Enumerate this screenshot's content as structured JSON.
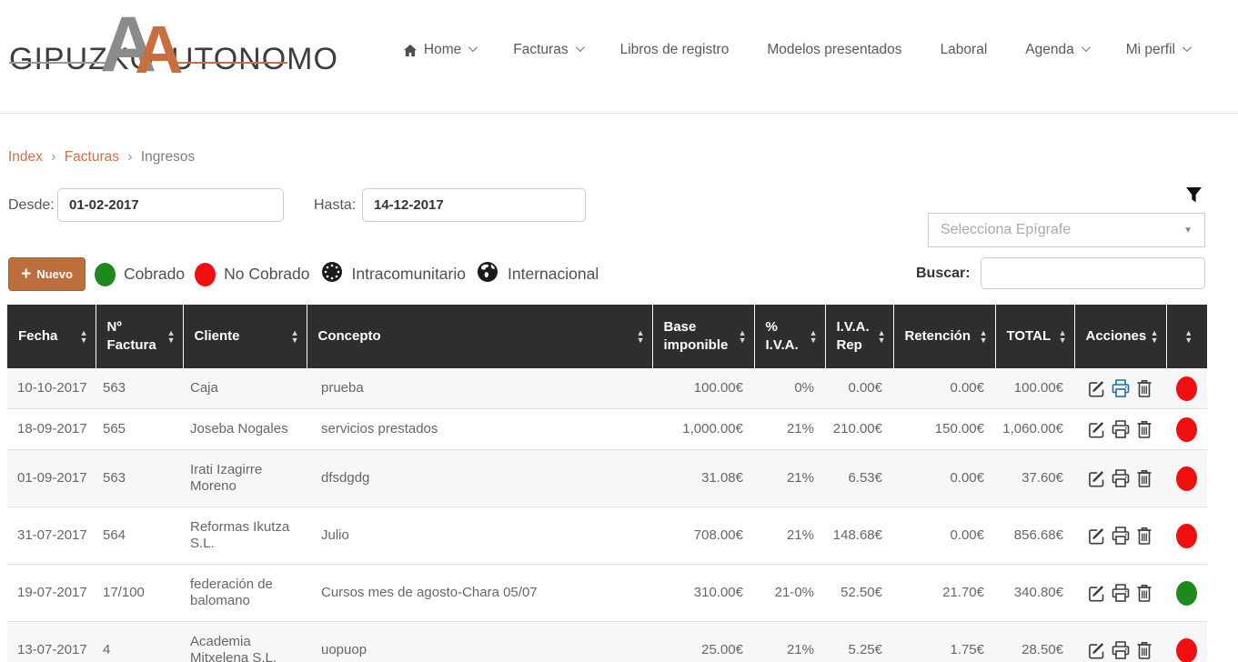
{
  "logo": {
    "text_left": "GIPUZKO",
    "a_gray": "A",
    "a_orange": "A",
    "text_right": "UTONOMO"
  },
  "nav": {
    "items": [
      {
        "label": "Home",
        "icon": "home-icon",
        "caret": true
      },
      {
        "label": "Facturas",
        "caret": true
      },
      {
        "label": "Libros de registro",
        "caret": false
      },
      {
        "label": "Modelos presentados",
        "caret": false
      },
      {
        "label": "Laboral",
        "caret": false
      },
      {
        "label": "Agenda",
        "caret": true
      },
      {
        "label": "Mi perfil",
        "caret": true
      }
    ]
  },
  "breadcrumb": {
    "items": [
      "Index",
      "Facturas",
      "Ingresos"
    ],
    "separator": "›"
  },
  "filters": {
    "from_label": "Desde:",
    "from_value": "01-02-2017",
    "to_label": "Hasta:",
    "to_value": "14-12-2017",
    "epigrafe_placeholder": "Selecciona Epígrafe",
    "search_label": "Buscar:",
    "search_value": ""
  },
  "toolbar": {
    "new_plus": "+",
    "new_label": "Nuevo"
  },
  "legend": {
    "items": [
      {
        "label": "Cobrado",
        "color": "#1e8a1e",
        "icon": "green-dot-icon"
      },
      {
        "label": "No Cobrado",
        "color": "#f10e0e",
        "icon": "red-dot-icon"
      },
      {
        "label": "Intracomunitario",
        "icon": "eu-circle-icon"
      },
      {
        "label": "Internacional",
        "icon": "globe-icon"
      }
    ]
  },
  "table": {
    "headers": [
      "Fecha",
      "Nº Factura",
      "Cliente",
      "Concepto",
      "Base imponible",
      "% I.V.A.",
      "I.V.A. Rep",
      "Retención",
      "TOTAL",
      "Acciones",
      ""
    ],
    "rows": [
      {
        "fecha": "10-10-2017",
        "factura": "563",
        "cliente": "Caja",
        "concepto": "prueba",
        "base": "100.00€",
        "iva_pct": "0%",
        "iva_rep": "0.00€",
        "retencion": "0.00€",
        "total": "100.00€",
        "status": "red",
        "print_active": true
      },
      {
        "fecha": "18-09-2017",
        "factura": "565",
        "cliente": "Joseba Nogales",
        "concepto": "servicios prestados",
        "base": "1,000.00€",
        "iva_pct": "21%",
        "iva_rep": "210.00€",
        "retencion": "150.00€",
        "total": "1,060.00€",
        "status": "red",
        "print_active": false
      },
      {
        "fecha": "01-09-2017",
        "factura": "563",
        "cliente": "Irati Izagirre Moreno",
        "concepto": "dfsdgdg",
        "base": "31.08€",
        "iva_pct": "21%",
        "iva_rep": "6.53€",
        "retencion": "0.00€",
        "total": "37.60€",
        "status": "red",
        "print_active": false
      },
      {
        "fecha": "31-07-2017",
        "factura": "564",
        "cliente": "Reformas Ikutza S.L.",
        "concepto": "Julio",
        "base": "708.00€",
        "iva_pct": "21%",
        "iva_rep": "148.68€",
        "retencion": "0.00€",
        "total": "856.68€",
        "status": "red",
        "print_active": false
      },
      {
        "fecha": "19-07-2017",
        "factura": "17/100",
        "cliente": "federación de balomano",
        "concepto": "Cursos mes de agosto-Chara 05/07",
        "base": "310.00€",
        "iva_pct": "21-0%",
        "iva_rep": "52.50€",
        "retencion": "21.70€",
        "total": "340.80€",
        "status": "green",
        "print_active": false
      },
      {
        "fecha": "13-07-2017",
        "factura": "4",
        "cliente": "Academia Mitxelena S.L.",
        "concepto": "uopuop",
        "base": "25.00€",
        "iva_pct": "21%",
        "iva_rep": "5.25€",
        "retencion": "1.75€",
        "total": "28.50€",
        "status": "red",
        "print_active": false
      }
    ],
    "actions": [
      "edit",
      "print",
      "delete"
    ]
  },
  "colors": {
    "accent_orange": "#c96f3e",
    "button_orange": "#bd6e3d",
    "breadcrumb_link": "#ca7248",
    "table_header_bg": "#2e2e2e",
    "status_red": "#f10e0e",
    "status_green": "#1e8a1e",
    "print_active_blue": "#1c6ea4"
  }
}
